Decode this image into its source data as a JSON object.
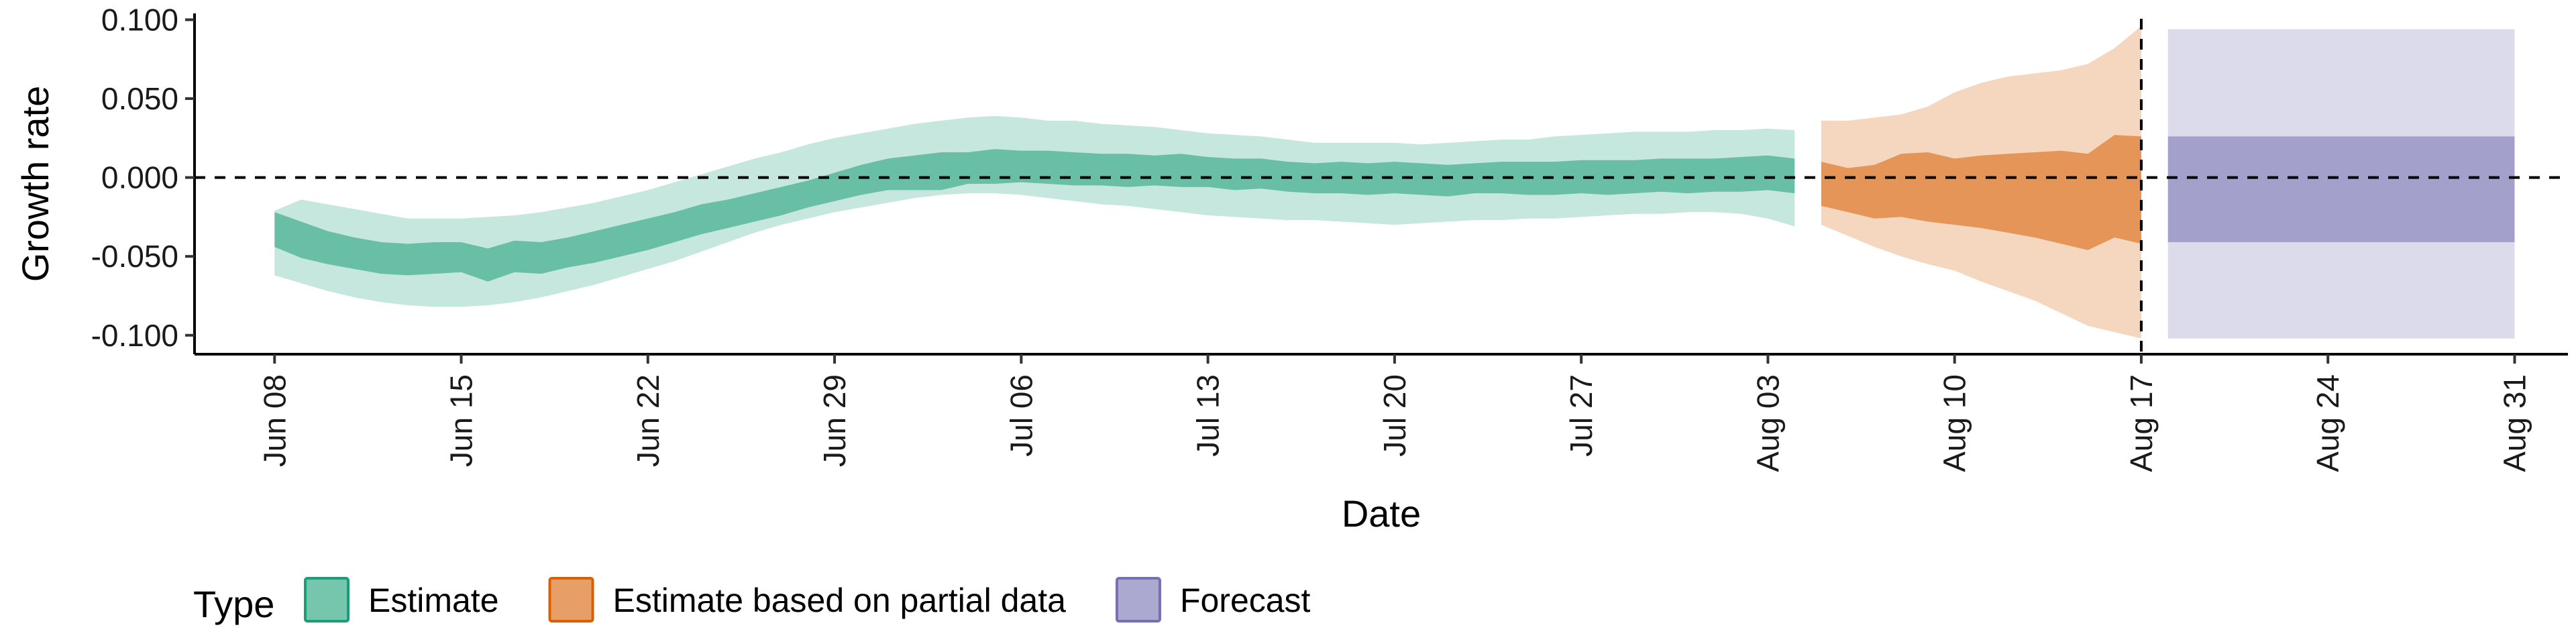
{
  "chart_data": {
    "type": "area",
    "xlabel": "Date",
    "ylabel": "Growth rate",
    "ylim": [
      -0.112,
      0.104
    ],
    "xlim": [
      "2020-06-05",
      "2020-09-02"
    ],
    "y_ticks": [
      -0.1,
      -0.05,
      0.0,
      0.05,
      0.1
    ],
    "y_tick_labels": [
      "-0.100",
      "-0.050",
      "0.000",
      "0.050",
      "0.100"
    ],
    "x_ticks": [
      "2020-06-08",
      "2020-06-15",
      "2020-06-22",
      "2020-06-29",
      "2020-07-06",
      "2020-07-13",
      "2020-07-20",
      "2020-07-27",
      "2020-08-03",
      "2020-08-10",
      "2020-08-17",
      "2020-08-24",
      "2020-08-31"
    ],
    "x_tick_labels": [
      "Jun 08",
      "Jun 15",
      "Jun 22",
      "Jun 29",
      "Jul 06",
      "Jul 13",
      "Jul 20",
      "Jul 27",
      "Aug 03",
      "Aug 10",
      "Aug 17",
      "Aug 24",
      "Aug 31"
    ],
    "reference_lines": {
      "horizontal_y": 0.0,
      "vertical_x": "2020-08-17"
    },
    "grid": false,
    "legend": {
      "position": "bottom-left",
      "title": "Type",
      "items": [
        {
          "label": "Estimate",
          "color": "#1b9e77"
        },
        {
          "label": "Estimate based on partial data",
          "color": "#d95f02"
        },
        {
          "label": "Forecast",
          "color": "#7570b3"
        }
      ]
    },
    "series": [
      {
        "name": "Estimate",
        "color": "#1b9e77",
        "x": [
          "2020-06-08",
          "2020-06-09",
          "2020-06-10",
          "2020-06-11",
          "2020-06-12",
          "2020-06-13",
          "2020-06-14",
          "2020-06-15",
          "2020-06-16",
          "2020-06-17",
          "2020-06-18",
          "2020-06-19",
          "2020-06-20",
          "2020-06-21",
          "2020-06-22",
          "2020-06-23",
          "2020-06-24",
          "2020-06-25",
          "2020-06-26",
          "2020-06-27",
          "2020-06-28",
          "2020-06-29",
          "2020-06-30",
          "2020-07-01",
          "2020-07-02",
          "2020-07-03",
          "2020-07-04",
          "2020-07-05",
          "2020-07-06",
          "2020-07-07",
          "2020-07-08",
          "2020-07-09",
          "2020-07-10",
          "2020-07-11",
          "2020-07-12",
          "2020-07-13",
          "2020-07-14",
          "2020-07-15",
          "2020-07-16",
          "2020-07-17",
          "2020-07-18",
          "2020-07-19",
          "2020-07-20",
          "2020-07-21",
          "2020-07-22",
          "2020-07-23",
          "2020-07-24",
          "2020-07-25",
          "2020-07-26",
          "2020-07-27",
          "2020-07-28",
          "2020-07-29",
          "2020-07-30",
          "2020-07-31",
          "2020-08-01",
          "2020-08-02",
          "2020-08-03",
          "2020-08-04"
        ],
        "lower_90": [
          -0.062,
          -0.067,
          -0.072,
          -0.076,
          -0.079,
          -0.081,
          -0.082,
          -0.082,
          -0.081,
          -0.079,
          -0.076,
          -0.072,
          -0.068,
          -0.063,
          -0.058,
          -0.053,
          -0.047,
          -0.041,
          -0.035,
          -0.03,
          -0.026,
          -0.022,
          -0.019,
          -0.016,
          -0.013,
          -0.011,
          -0.01,
          -0.01,
          -0.011,
          -0.013,
          -0.015,
          -0.017,
          -0.018,
          -0.02,
          -0.022,
          -0.024,
          -0.025,
          -0.026,
          -0.027,
          -0.027,
          -0.028,
          -0.029,
          -0.03,
          -0.029,
          -0.028,
          -0.027,
          -0.027,
          -0.026,
          -0.026,
          -0.025,
          -0.024,
          -0.023,
          -0.023,
          -0.022,
          -0.022,
          -0.023,
          -0.026,
          -0.031
        ],
        "upper_90": [
          -0.021,
          -0.014,
          -0.017,
          -0.02,
          -0.023,
          -0.026,
          -0.026,
          -0.026,
          -0.025,
          -0.024,
          -0.022,
          -0.019,
          -0.016,
          -0.012,
          -0.008,
          -0.003,
          0.002,
          0.007,
          0.012,
          0.016,
          0.021,
          0.025,
          0.028,
          0.031,
          0.034,
          0.036,
          0.038,
          0.039,
          0.038,
          0.036,
          0.036,
          0.034,
          0.033,
          0.032,
          0.03,
          0.028,
          0.027,
          0.026,
          0.024,
          0.022,
          0.022,
          0.022,
          0.022,
          0.021,
          0.022,
          0.023,
          0.024,
          0.024,
          0.026,
          0.027,
          0.028,
          0.029,
          0.029,
          0.029,
          0.03,
          0.03,
          0.031,
          0.03
        ],
        "lower_50": [
          -0.044,
          -0.051,
          -0.055,
          -0.058,
          -0.061,
          -0.062,
          -0.061,
          -0.06,
          -0.066,
          -0.06,
          -0.061,
          -0.057,
          -0.054,
          -0.05,
          -0.046,
          -0.041,
          -0.036,
          -0.032,
          -0.028,
          -0.024,
          -0.019,
          -0.015,
          -0.011,
          -0.008,
          -0.008,
          -0.008,
          -0.004,
          -0.004,
          -0.003,
          -0.004,
          -0.005,
          -0.005,
          -0.006,
          -0.005,
          -0.006,
          -0.006,
          -0.008,
          -0.007,
          -0.009,
          -0.01,
          -0.01,
          -0.011,
          -0.01,
          -0.011,
          -0.012,
          -0.01,
          -0.01,
          -0.011,
          -0.011,
          -0.01,
          -0.011,
          -0.01,
          -0.009,
          -0.01,
          -0.009,
          -0.009,
          -0.008,
          -0.01
        ],
        "upper_50": [
          -0.022,
          -0.028,
          -0.034,
          -0.038,
          -0.041,
          -0.042,
          -0.041,
          -0.041,
          -0.045,
          -0.04,
          -0.041,
          -0.038,
          -0.034,
          -0.03,
          -0.026,
          -0.022,
          -0.017,
          -0.014,
          -0.01,
          -0.006,
          -0.002,
          0.003,
          0.008,
          0.012,
          0.014,
          0.016,
          0.016,
          0.018,
          0.017,
          0.017,
          0.016,
          0.015,
          0.015,
          0.014,
          0.015,
          0.013,
          0.012,
          0.012,
          0.01,
          0.009,
          0.01,
          0.009,
          0.01,
          0.009,
          0.008,
          0.009,
          0.01,
          0.01,
          0.01,
          0.011,
          0.011,
          0.011,
          0.012,
          0.012,
          0.012,
          0.013,
          0.014,
          0.012
        ]
      },
      {
        "name": "Estimate based on partial data",
        "color": "#d95f02",
        "x": [
          "2020-08-05",
          "2020-08-06",
          "2020-08-07",
          "2020-08-08",
          "2020-08-09",
          "2020-08-10",
          "2020-08-11",
          "2020-08-12",
          "2020-08-13",
          "2020-08-14",
          "2020-08-15",
          "2020-08-16",
          "2020-08-17"
        ],
        "lower_90": [
          -0.03,
          -0.037,
          -0.044,
          -0.05,
          -0.055,
          -0.059,
          -0.066,
          -0.072,
          -0.078,
          -0.086,
          -0.094,
          -0.098,
          -0.102
        ],
        "upper_90": [
          0.036,
          0.036,
          0.038,
          0.04,
          0.045,
          0.054,
          0.06,
          0.064,
          0.066,
          0.068,
          0.072,
          0.082,
          0.096
        ],
        "lower_50": [
          -0.018,
          -0.022,
          -0.026,
          -0.025,
          -0.028,
          -0.03,
          -0.032,
          -0.035,
          -0.038,
          -0.042,
          -0.046,
          -0.038,
          -0.042
        ],
        "upper_50": [
          0.01,
          0.006,
          0.008,
          0.015,
          0.016,
          0.012,
          0.014,
          0.015,
          0.016,
          0.017,
          0.015,
          0.027,
          0.026
        ]
      },
      {
        "name": "Forecast",
        "color": "#7570b3",
        "x": [
          "2020-08-18",
          "2020-08-31"
        ],
        "lower_90": [
          -0.102,
          -0.102
        ],
        "upper_90": [
          0.094,
          0.094
        ],
        "lower_50": [
          -0.041,
          -0.041
        ],
        "upper_50": [
          0.026,
          0.026
        ]
      }
    ]
  }
}
